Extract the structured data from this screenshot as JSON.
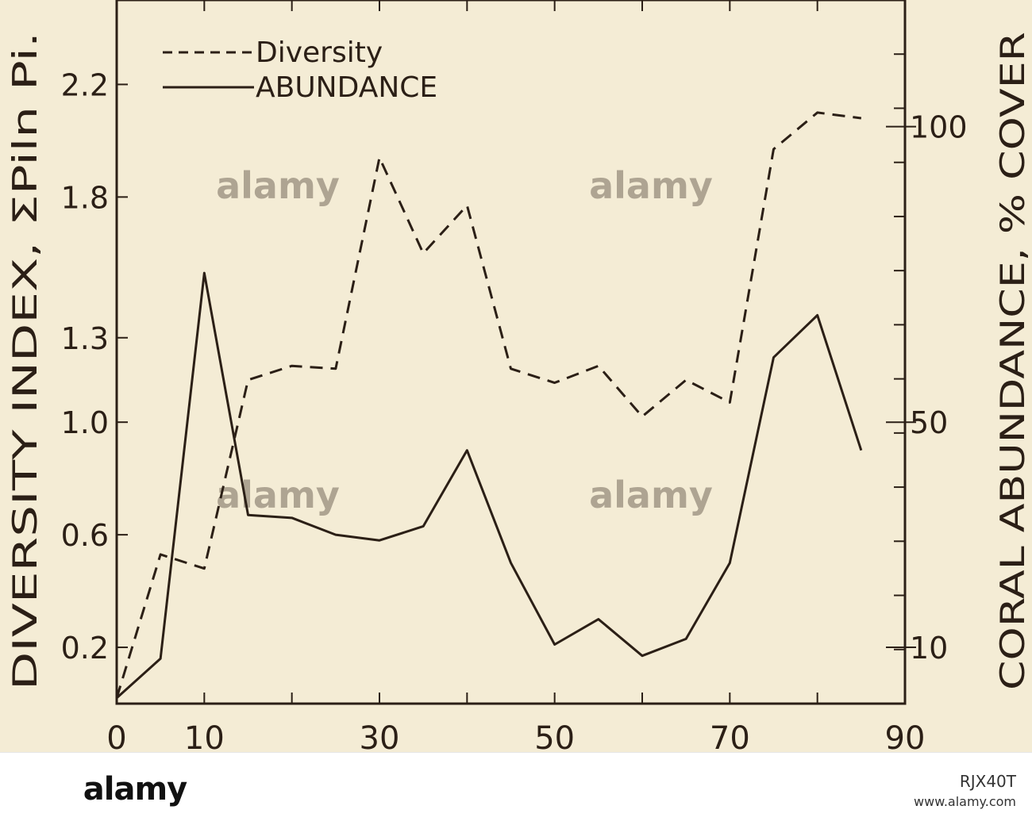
{
  "chart_data": {
    "type": "line",
    "x": [
      0,
      5,
      10,
      15,
      20,
      25,
      30,
      35,
      40,
      45,
      50,
      55,
      60,
      65,
      70,
      75,
      80,
      85
    ],
    "x_ticks": [
      "0",
      "10",
      "30",
      "50",
      "70",
      "90"
    ],
    "xlim": [
      0,
      90
    ],
    "ylabel": "DIVERSITY INDEX, ΣPiln Pi.",
    "y_ticks": [
      "0.2",
      "0.6",
      "1.0",
      "1.3",
      "1.8",
      "2.2"
    ],
    "ylim": [
      0.0,
      2.5
    ],
    "y2label": "CORAL ABUNDANCE, % COVER",
    "y2_ticks": [
      "10",
      "50",
      "100"
    ],
    "series": [
      {
        "name": "Diversity",
        "style": "dashed",
        "values": [
          0.02,
          0.53,
          0.48,
          1.15,
          1.2,
          1.19,
          1.94,
          1.6,
          1.77,
          1.19,
          1.14,
          1.2,
          1.02,
          1.15,
          1.07,
          1.97,
          2.1,
          2.08
        ]
      },
      {
        "name": "ABUNDANCE",
        "style": "solid",
        "values": [
          0.02,
          0.16,
          1.53,
          0.67,
          0.66,
          0.6,
          0.58,
          0.63,
          0.9,
          0.5,
          0.21,
          0.3,
          0.17,
          0.23,
          0.5,
          1.23,
          1.38,
          0.9
        ]
      }
    ],
    "colors": {
      "background": "#f4ecd5",
      "ink": "#2b1f16"
    }
  },
  "watermark": "alamy",
  "footer": {
    "logo": "alamy",
    "image_id": "RJX40T",
    "url": "www.alamy.com"
  }
}
